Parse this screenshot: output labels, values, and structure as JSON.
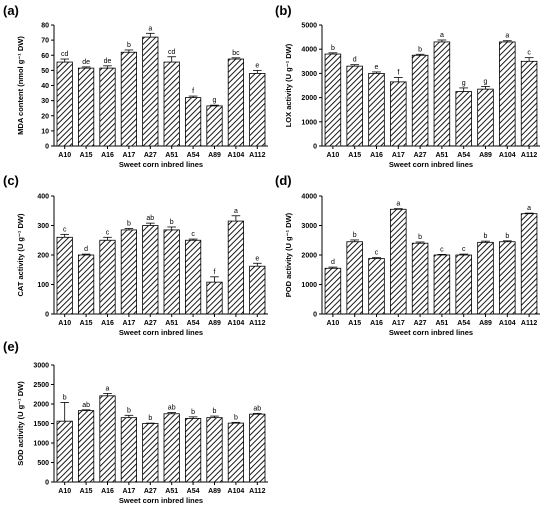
{
  "chart_data": [
    {
      "type": "bar",
      "panel": "(a)",
      "categories": [
        "A10",
        "A15",
        "A16",
        "A17",
        "A27",
        "A51",
        "A54",
        "A89",
        "A104",
        "A112"
      ],
      "values": [
        55.5,
        51.5,
        51.5,
        62,
        72,
        55.5,
        32,
        26.5,
        57.5,
        48
      ],
      "errors": [
        2,
        0.8,
        1.5,
        1.5,
        2.5,
        3.5,
        1,
        0.5,
        0.8,
        2
      ],
      "labels": [
        "cd",
        "de",
        "de",
        "b",
        "a",
        "cd",
        "f",
        "g",
        "bc",
        "e"
      ],
      "xlabel": "Sweet corn inbred lines",
      "ylabel": "MDA content (nmol g⁻¹ DW)",
      "ylim": [
        0,
        80
      ],
      "yticks": [
        0,
        10,
        20,
        30,
        40,
        50,
        60,
        70,
        80
      ]
    },
    {
      "type": "bar",
      "panel": "(b)",
      "categories": [
        "A10",
        "A15",
        "A16",
        "A17",
        "A27",
        "A51",
        "A54",
        "A89",
        "A104",
        "A112"
      ],
      "values": [
        3800,
        3300,
        3000,
        2650,
        3750,
        4300,
        2250,
        2350,
        4300,
        3500
      ],
      "errors": [
        50,
        60,
        60,
        180,
        40,
        80,
        150,
        110,
        50,
        150
      ],
      "labels": [
        "b",
        "d",
        "e",
        "f",
        "b",
        "a",
        "g",
        "g",
        "a",
        "c"
      ],
      "xlabel": "Sweet corn inbred lines",
      "ylabel": "LOX activity (U g⁻¹ DW)",
      "ylim": [
        0,
        5000
      ],
      "yticks": [
        0,
        1000,
        2000,
        3000,
        4000,
        5000
      ]
    },
    {
      "type": "bar",
      "panel": "(c)",
      "categories": [
        "A10",
        "A15",
        "A16",
        "A17",
        "A27",
        "A51",
        "A54",
        "A89",
        "A104",
        "A112"
      ],
      "values": [
        260,
        200,
        250,
        285,
        300,
        285,
        250,
        108,
        315,
        162
      ],
      "errors": [
        10,
        3,
        10,
        5,
        8,
        10,
        4,
        18,
        18,
        10
      ],
      "labels": [
        "c",
        "d",
        "c",
        "b",
        "ab",
        "b",
        "c",
        "f",
        "a",
        "e"
      ],
      "xlabel": "Sweet corn inbred lines",
      "ylabel": "CAT activity (U g⁻¹ DW)",
      "ylim": [
        0,
        400
      ],
      "yticks": [
        0,
        100,
        200,
        300,
        400
      ]
    },
    {
      "type": "bar",
      "panel": "(d)",
      "categories": [
        "A10",
        "A15",
        "A16",
        "A17",
        "A27",
        "A51",
        "A54",
        "A89",
        "A104",
        "A112"
      ],
      "values": [
        1550,
        2450,
        1880,
        3550,
        2400,
        2000,
        2000,
        2430,
        2450,
        3400
      ],
      "errors": [
        40,
        60,
        30,
        20,
        40,
        20,
        30,
        40,
        30,
        20
      ],
      "labels": [
        "d",
        "b",
        "c",
        "a",
        "b",
        "c",
        "c",
        "b",
        "b",
        "a"
      ],
      "xlabel": "Sweet corn inbred lines",
      "ylabel": "POD activity (U g⁻¹ DW)",
      "ylim": [
        0,
        4000
      ],
      "yticks": [
        0,
        1000,
        2000,
        3000,
        4000
      ]
    },
    {
      "type": "bar",
      "panel": "(e)",
      "categories": [
        "A10",
        "A15",
        "A16",
        "A17",
        "A27",
        "A51",
        "A54",
        "A89",
        "A104",
        "A112"
      ],
      "values": [
        1560,
        1830,
        2210,
        1650,
        1500,
        1750,
        1630,
        1650,
        1510,
        1740
      ],
      "errors": [
        480,
        20,
        60,
        60,
        10,
        30,
        40,
        40,
        20,
        20
      ],
      "labels": [
        "b",
        "ab",
        "a",
        "b",
        "b",
        "ab",
        "b",
        "b",
        "b",
        "ab"
      ],
      "xlabel": "Sweet corn inbred lines",
      "ylabel": "SOD activity (U g⁻¹ DW)",
      "ylim": [
        0,
        3000
      ],
      "yticks": [
        0,
        500,
        1000,
        1500,
        2000,
        2500,
        3000
      ]
    }
  ]
}
